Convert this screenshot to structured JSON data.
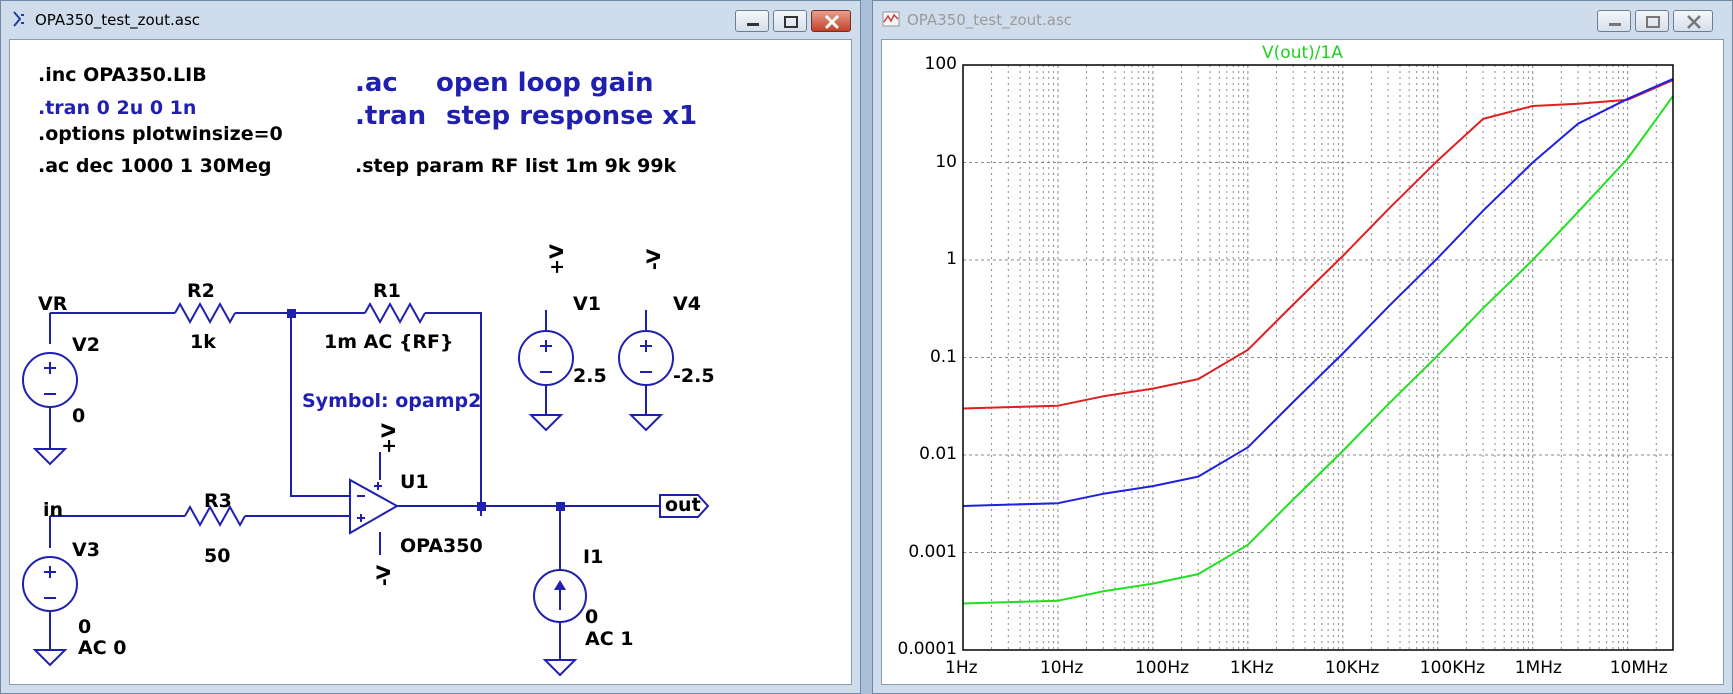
{
  "left_window": {
    "title": "OPA350_test_zout.asc",
    "schematic": {
      "directives": {
        "inc": ".inc OPA350.LIB",
        "tran": ".tran 0 2u 0 1n",
        "options": ".options plotwinsize=0",
        "ac": ".ac dec 1000 1 30Meg",
        "step": ".step param RF list 1m 9k 99k",
        "comment_ac_cmd": ".ac",
        "comment_ac_text": "open loop gain",
        "comment_tran_cmd": ".tran",
        "comment_tran_text": "step response x1",
        "symbol_note": "Symbol: opamp2"
      },
      "components": {
        "VR": "VR",
        "V2": "V2",
        "V2_value": "0",
        "R2": "R2",
        "R2_value": "1k",
        "R1": "R1",
        "R1_value": "1m AC {RF}",
        "V1": "V1",
        "V1_node": "+V",
        "V1_value": "2.5",
        "V4": "V4",
        "V4_node": "-V",
        "V4_value": "-2.5",
        "U1": "U1",
        "U1_model": "OPA350",
        "U1_pos_supply": "+V",
        "U1_neg_supply": "-V",
        "in": "in",
        "V3": "V3",
        "V3_value": "0",
        "V3_ac": "AC 0",
        "R3": "R3",
        "R3_value": "50",
        "I1": "I1",
        "I1_value": "0",
        "I1_ac": "AC 1",
        "out": "out"
      },
      "wire_color": "#1f1fb0"
    }
  },
  "right_window": {
    "title": "OPA350_test_zout.asc",
    "plot": {
      "trace_label": "V(out)/1A",
      "x_ticks": [
        "1Hz",
        "10Hz",
        "100Hz",
        "1KHz",
        "10KHz",
        "100KHz",
        "1MHz",
        "10MHz"
      ],
      "y_ticks": [
        "100",
        "10",
        "1",
        "0.1",
        "0.01",
        "0.001",
        "0.0001"
      ]
    }
  },
  "chart_data": {
    "type": "line",
    "title": "V(out)/1A",
    "xlabel": "",
    "ylabel": "",
    "x_scale": "log",
    "y_scale": "log",
    "xlim": [
      1,
      30000000
    ],
    "ylim": [
      0.0001,
      100
    ],
    "grid": true,
    "x": [
      1,
      10,
      30,
      100,
      300,
      1000,
      3000,
      10000,
      30000,
      100000,
      300000,
      1000000,
      3000000,
      10000000,
      30000000
    ],
    "series": [
      {
        "color": "#e02020",
        "values": [
          0.03,
          0.032,
          0.04,
          0.048,
          0.06,
          0.12,
          0.35,
          1.1,
          3.3,
          10.5,
          28,
          38,
          40,
          44,
          70
        ]
      },
      {
        "color": "#2020e0",
        "values": [
          0.003,
          0.0032,
          0.004,
          0.0048,
          0.006,
          0.012,
          0.035,
          0.11,
          0.33,
          1.05,
          3.2,
          10,
          25,
          45,
          72
        ]
      },
      {
        "color": "#20e020",
        "values": [
          0.0003,
          0.00032,
          0.0004,
          0.00048,
          0.0006,
          0.0012,
          0.0035,
          0.011,
          0.033,
          0.105,
          0.32,
          1.0,
          3.1,
          11,
          48
        ]
      }
    ]
  }
}
